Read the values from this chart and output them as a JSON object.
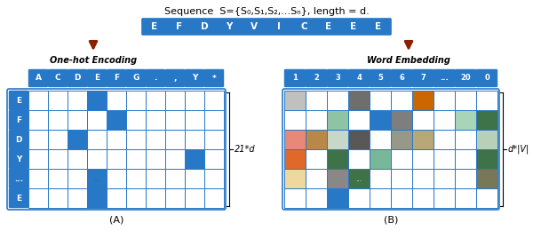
{
  "title": "Sequence  S={S₀,S₁,S₂,...Sₙ}, length = d.",
  "seq_letters": [
    "E",
    "F",
    "D",
    "Y",
    "V",
    "I",
    "C",
    "E",
    "E",
    "E"
  ],
  "onehot_cols": [
    "A",
    "C",
    "D",
    "E",
    "F",
    "G",
    ".",
    ",",
    "Y",
    "*"
  ],
  "onehot_rows": [
    "E",
    "F",
    "D",
    "Y",
    "...",
    "E"
  ],
  "embed_cols": [
    "1",
    "2",
    "3",
    "4",
    "5",
    "6",
    "7",
    "...",
    "20",
    "0"
  ],
  "embed_rows": [
    "",
    "",
    "",
    "",
    "",
    ""
  ],
  "blue": "#2878C8",
  "white": "#FFFFFF",
  "label_A": "(A)",
  "label_B": "(B)",
  "arrow_left_label": "One-hot Encoding",
  "arrow_right_label": "Word Embedding",
  "size_label_A": "21*d",
  "size_label_B": "d*|V|",
  "onehot_matrix": [
    [
      0,
      0,
      0,
      1,
      0,
      0,
      0,
      0,
      0,
      0
    ],
    [
      0,
      0,
      0,
      0,
      1,
      0,
      0,
      0,
      0,
      0
    ],
    [
      0,
      0,
      1,
      0,
      0,
      0,
      0,
      0,
      0,
      0
    ],
    [
      0,
      0,
      0,
      0,
      0,
      0,
      0,
      0,
      1,
      0
    ],
    [
      0,
      0,
      0,
      1,
      0,
      0,
      0,
      0,
      0,
      0
    ],
    [
      0,
      0,
      0,
      1,
      0,
      0,
      0,
      0,
      0,
      0
    ]
  ],
  "embed_colors": [
    [
      "#C0C0C0",
      "#FFFFFF",
      "#FFFFFF",
      "#6E6E6E",
      "#FFFFFF",
      "#FFFFFF",
      "#CC6600",
      "#FFFFFF",
      "#FFFFFF",
      "#FFFFFF"
    ],
    [
      "#FFFFFF",
      "#FFFFFF",
      "#8EC4A4",
      "#FFFFFF",
      "#2878C8",
      "#7E7E7E",
      "#FFFFFF",
      "#FFFFFF",
      "#A8D4B8",
      "#3E7248"
    ],
    [
      "#E88878",
      "#B88848",
      "#C8D8C8",
      "#585858",
      "#FFFFFF",
      "#989888",
      "#B8A878",
      "#FFFFFF",
      "#FFFFFF",
      "#B8D0B8"
    ],
    [
      "#E06828",
      "#FFFFFF",
      "#3E7248",
      "#FFFFFF",
      "#78B898",
      "#FFFFFF",
      "#FFFFFF",
      "#FFFFFF",
      "#FFFFFF",
      "#3E7248"
    ],
    [
      "#EED8A0",
      "#FFFFFF",
      "#888888",
      "#3E7248",
      "#FFFFFF",
      "#FFFFFF",
      "#FFFFFF",
      "#FFFFFF",
      "#FFFFFF",
      "#787858"
    ],
    [
      "#FFFFFF",
      "#FFFFFF",
      "#2878C8",
      "#FFFFFF",
      "#FFFFFF",
      "#FFFFFF",
      "#FFFFFF",
      "#FFFFFF",
      "#FFFFFF",
      "#FFFFFF"
    ]
  ],
  "embed_dots_row": 4,
  "embed_dots_col": 3
}
